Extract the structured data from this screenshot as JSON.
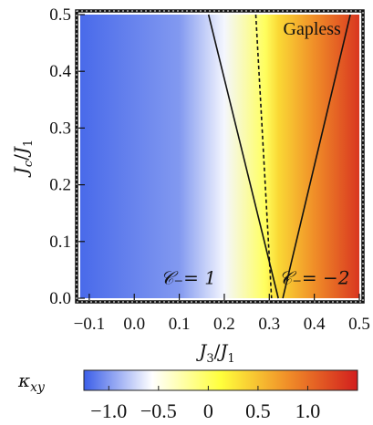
{
  "chart_data": {
    "type": "heatmap",
    "xlabel": "J3/J1",
    "ylabel": "Jc/J1",
    "xlim": [
      -0.12,
      0.5
    ],
    "ylim": [
      0.0,
      0.5
    ],
    "x_ticks": [
      -0.1,
      0.0,
      0.1,
      0.2,
      0.3,
      0.4,
      0.5
    ],
    "x_tick_labels": [
      "−0.1",
      "0.0",
      "0.1",
      "0.2",
      "0.3",
      "0.4",
      "0.5"
    ],
    "y_ticks": [
      0.0,
      0.1,
      0.2,
      0.3,
      0.4,
      0.5
    ],
    "y_tick_labels": [
      "0.0",
      "0.1",
      "0.2",
      "0.3",
      "0.4",
      "0.5"
    ],
    "colorbar": {
      "label": "κ_xy",
      "range": [
        -1.25,
        1.5
      ],
      "ticks": [
        -1.0,
        -0.5,
        0,
        0.5,
        1.0
      ],
      "tick_labels": [
        "−1.0",
        "−0.5",
        "0",
        "0.5",
        "1.0"
      ],
      "colors": [
        "#3b5ee8",
        "#ffffff",
        "#ffff3c",
        "#f08c28",
        "#d21e1e"
      ]
    },
    "field": {
      "description_of_gradient_along_x": [
        {
          "x": -0.12,
          "value": -1.2
        },
        {
          "x": 0.1,
          "value": -1.0
        },
        {
          "x": 0.2,
          "value": -0.6
        },
        {
          "x": 0.29,
          "value": 0.0
        },
        {
          "x": 0.32,
          "value": 0.35
        },
        {
          "x": 0.4,
          "value": 0.8
        },
        {
          "x": 0.5,
          "value": 1.35
        }
      ]
    },
    "boundaries": [
      {
        "style": "solid",
        "points": [
          [
            0.165,
            0.5
          ],
          [
            0.32,
            0.0
          ]
        ]
      },
      {
        "style": "solid",
        "points": [
          [
            0.33,
            0.0
          ],
          [
            0.48,
            0.5
          ]
        ]
      },
      {
        "style": "dashed",
        "points": [
          [
            0.27,
            0.5
          ],
          [
            0.305,
            0.0
          ]
        ]
      }
    ],
    "annotations": [
      {
        "text": "Gapless",
        "x": 0.395,
        "y": 0.465
      },
      {
        "text": "𝒞₋= 1",
        "x": 0.12,
        "y": 0.025
      },
      {
        "text": "𝒞₋= −2",
        "x": 0.4,
        "y": 0.025
      }
    ]
  }
}
